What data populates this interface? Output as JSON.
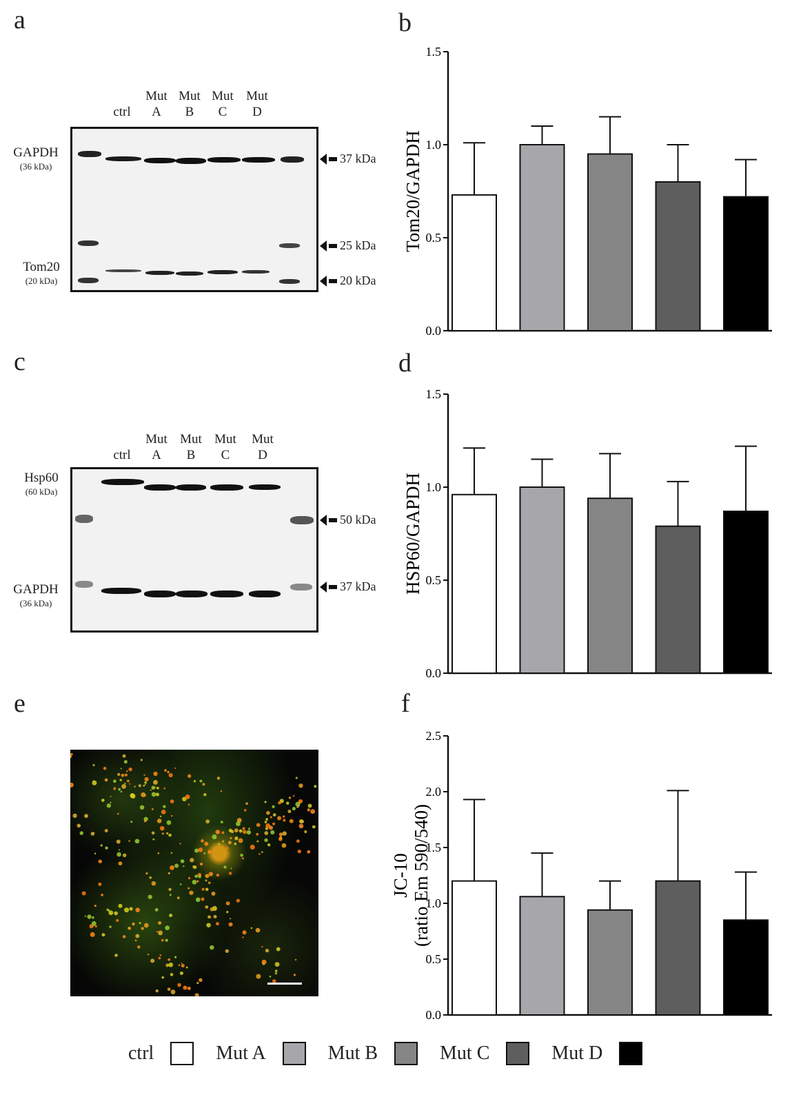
{
  "panels": {
    "a": "a",
    "b": "b",
    "c": "c",
    "d": "d",
    "e": "e",
    "f": "f"
  },
  "blots": {
    "a": {
      "lanes": [
        {
          "top": "",
          "bottom": "ctrl"
        },
        {
          "top": "Mut",
          "bottom": "A"
        },
        {
          "top": "Mut",
          "bottom": "B"
        },
        {
          "top": "Mut",
          "bottom": "C"
        },
        {
          "top": "Mut",
          "bottom": "D"
        }
      ],
      "proteins": [
        {
          "name": "GAPDH",
          "size": "(36 kDa)"
        },
        {
          "name": "Tom20",
          "size": "(20 kDa)"
        }
      ],
      "markers": [
        "37 kDa",
        "25 kDa",
        "20 kDa"
      ]
    },
    "c": {
      "lanes": [
        {
          "top": "",
          "bottom": "ctrl"
        },
        {
          "top": "Mut",
          "bottom": "A"
        },
        {
          "top": "Mut",
          "bottom": "B"
        },
        {
          "top": "Mut",
          "bottom": "C"
        },
        {
          "top": "Mut",
          "bottom": "D"
        }
      ],
      "proteins": [
        {
          "name": "Hsp60",
          "size": "(60 kDa)"
        },
        {
          "name": "GAPDH",
          "size": "(36 kDa)"
        }
      ],
      "markers": [
        "50 kDa",
        "37 kDa"
      ]
    }
  },
  "chart_data": [
    {
      "panel": "b",
      "type": "bar",
      "categories": [
        "ctrl",
        "Mut A",
        "Mut B",
        "Mut C",
        "Mut D"
      ],
      "values": [
        0.73,
        1.0,
        0.95,
        0.8,
        0.72
      ],
      "errors": [
        0.28,
        0.1,
        0.2,
        0.2,
        0.2
      ],
      "ylabel": "Tom20/GAPDH",
      "ylim": [
        0,
        1.5
      ],
      "yticks": [
        "0.0",
        "0.5",
        "1.0",
        "1.5"
      ]
    },
    {
      "panel": "d",
      "type": "bar",
      "categories": [
        "ctrl",
        "Mut A",
        "Mut B",
        "Mut C",
        "Mut D"
      ],
      "values": [
        0.96,
        1.0,
        0.94,
        0.79,
        0.87
      ],
      "errors": [
        0.25,
        0.15,
        0.24,
        0.24,
        0.35
      ],
      "ylabel": "HSP60/GAPDH",
      "ylim": [
        0,
        1.5
      ],
      "yticks": [
        "0.0",
        "0.5",
        "1.0",
        "1.5"
      ]
    },
    {
      "panel": "f",
      "type": "bar",
      "categories": [
        "ctrl",
        "Mut A",
        "Mut B",
        "Mut C",
        "Mut D"
      ],
      "values": [
        1.2,
        1.06,
        0.94,
        1.2,
        0.85
      ],
      "errors": [
        0.73,
        0.39,
        0.26,
        0.81,
        0.43
      ],
      "ylabel": "JC-10",
      "ylabel2": "(ratio Em 590/540)",
      "ylim": [
        0,
        2.5
      ],
      "yticks": [
        "0.0",
        "0.5",
        "1.0",
        "1.5",
        "2.0",
        "2.5"
      ]
    }
  ],
  "colors": {
    "ctrl": "#ffffff",
    "Mut A": "#a7a7ab",
    "Mut B": "#858585",
    "Mut C": "#5e5e5e",
    "Mut D": "#000000"
  },
  "legend": [
    {
      "label": "ctrl",
      "color": "#ffffff"
    },
    {
      "label": "Mut A",
      "color": "#a7a7ab"
    },
    {
      "label": "Mut B",
      "color": "#858585"
    },
    {
      "label": "Mut C",
      "color": "#5e5e5e"
    },
    {
      "label": "Mut D",
      "color": "#000000"
    }
  ]
}
